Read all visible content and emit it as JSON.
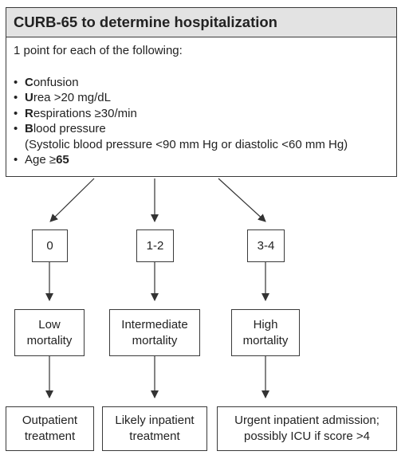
{
  "title": "CURB-65 to determine hospitalization",
  "intro": "1 point for each of the following:",
  "criteria": [
    {
      "bold": "C",
      "rest": "onfusion",
      "note": ""
    },
    {
      "bold": "U",
      "rest": "rea >20 mg/dL",
      "note": ""
    },
    {
      "bold": "R",
      "rest": "espirations ≥30/min",
      "note": ""
    },
    {
      "bold": "B",
      "rest": "lood pressure",
      "note": "(Systolic blood pressure <90 mm Hg or diastolic <60 mm Hg)"
    },
    {
      "prefix": "Age ≥",
      "boldTail": "65"
    }
  ],
  "scores": [
    "0",
    "1-2",
    "3-4"
  ],
  "mortality": [
    "Low\nmortality",
    "Intermediate\nmortality",
    "High\nmortality"
  ],
  "disposition": [
    "Outpatient\ntreatment",
    "Likely inpatient\ntreatment",
    "Urgent inpatient admission;\npossibly ICU if score >4"
  ]
}
